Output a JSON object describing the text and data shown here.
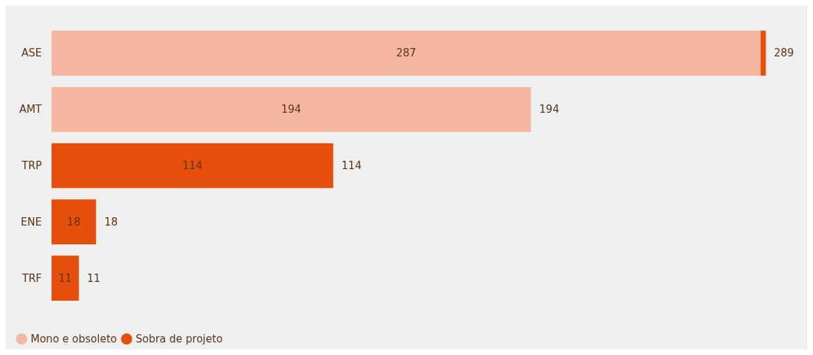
{
  "chart_data": {
    "type": "bar",
    "orientation": "horizontal",
    "stacked": true,
    "categories": [
      "ASE",
      "AMT",
      "TRP",
      "ENE",
      "TRF"
    ],
    "series": [
      {
        "name": "Mono e obsoleto",
        "color": "#f4b6a0",
        "values": [
          287,
          194,
          null,
          null,
          null
        ],
        "value_labels": [
          "287",
          "194",
          null,
          null,
          null
        ]
      },
      {
        "name": "Sobra de projeto",
        "color": "#e64e0c",
        "values": [
          2,
          null,
          114,
          18,
          11
        ],
        "value_labels": [
          null,
          null,
          "114",
          "18",
          "11"
        ]
      }
    ],
    "totals": [
      "289",
      "194",
      "114",
      "18",
      "11"
    ],
    "legend": "bottom left"
  }
}
